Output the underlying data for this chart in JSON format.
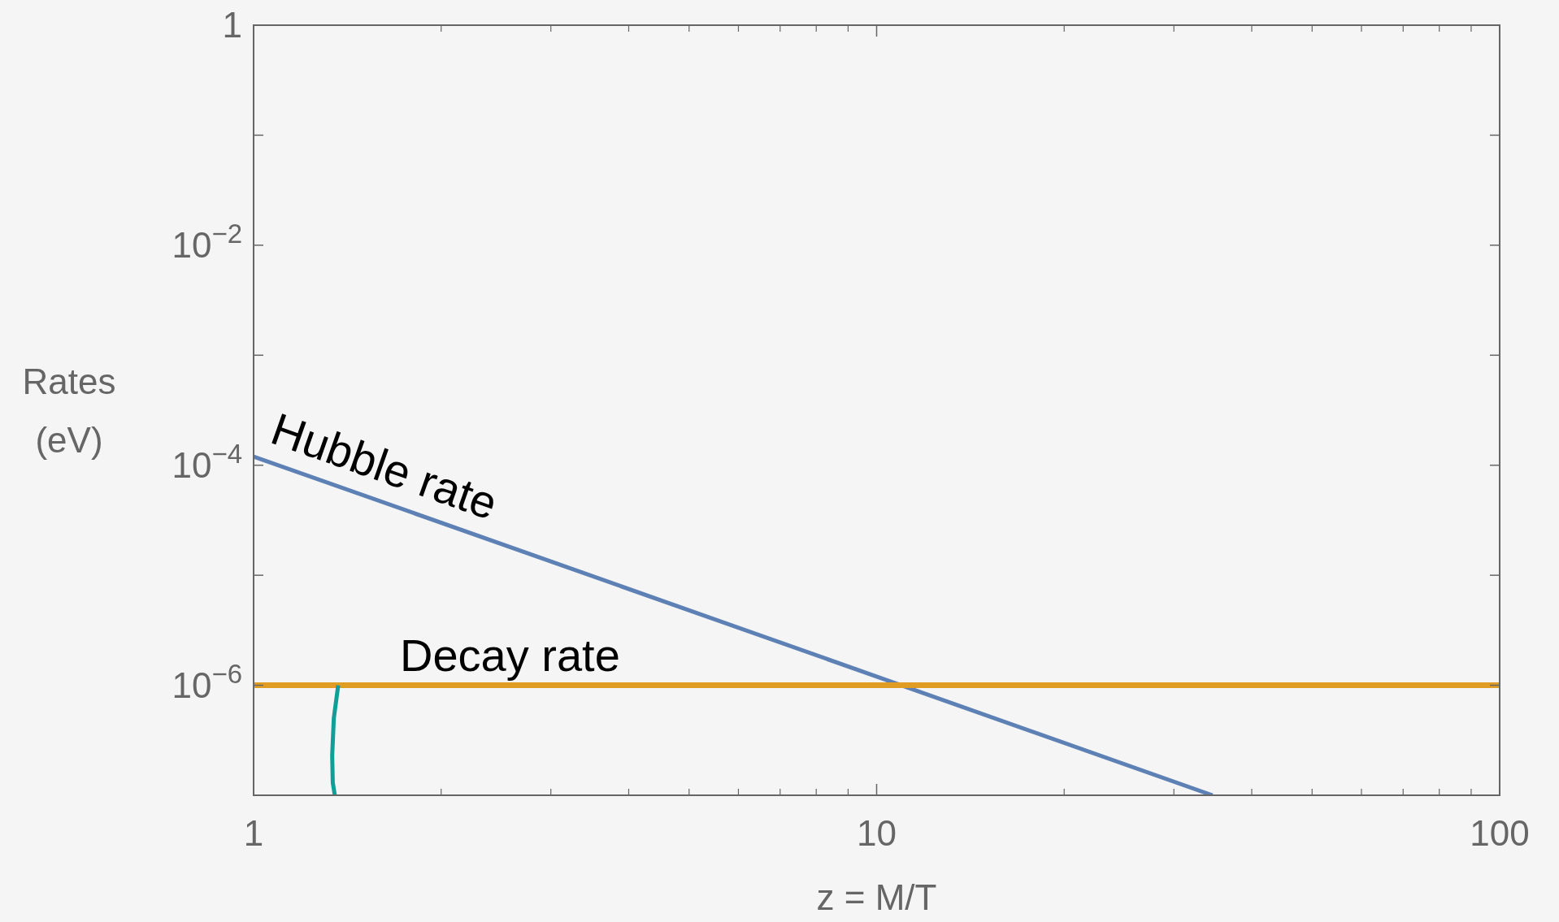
{
  "chart_data": {
    "type": "line",
    "xlabel": "z = M/T",
    "ylabel": "Rates (eV)",
    "log": "xy",
    "grid": false,
    "xlim": [
      1,
      100
    ],
    "xticks": [
      1,
      10,
      100
    ],
    "ylim": [
      1e-07,
      1
    ],
    "yticks": [
      1,
      {
        "value": 0.1,
        "label": null
      },
      {
        "value": 0.01,
        "label": "10$^{−2}$"
      },
      {
        "value": 0.001,
        "label": null
      },
      {
        "value": 0.0001,
        "label": "10$^{−4}$"
      },
      {
        "value": 1e-05,
        "label": null
      },
      {
        "value": 1e-06,
        "label": "10$^{−6}$"
      }
    ],
    "series": [
      {
        "name": "Hubble rate",
        "color": "#5e81b5",
        "x": [
          1,
          10,
          34.6
        ],
        "values": [
          0.00012,
          1.2e-06,
          1e-07
        ]
      },
      {
        "name": "Decay rate",
        "color": "#e19c24",
        "x": [
          1,
          100
        ],
        "values": [
          1e-06,
          1e-06
        ]
      },
      {
        "color": "#0f9f96",
        "x": [
          1.367,
          1.345,
          1.337,
          1.34,
          1.35
        ],
        "values": [
          1e-06,
          5e-07,
          2.3e-07,
          1.3e-07,
          1e-07
        ]
      }
    ]
  }
}
